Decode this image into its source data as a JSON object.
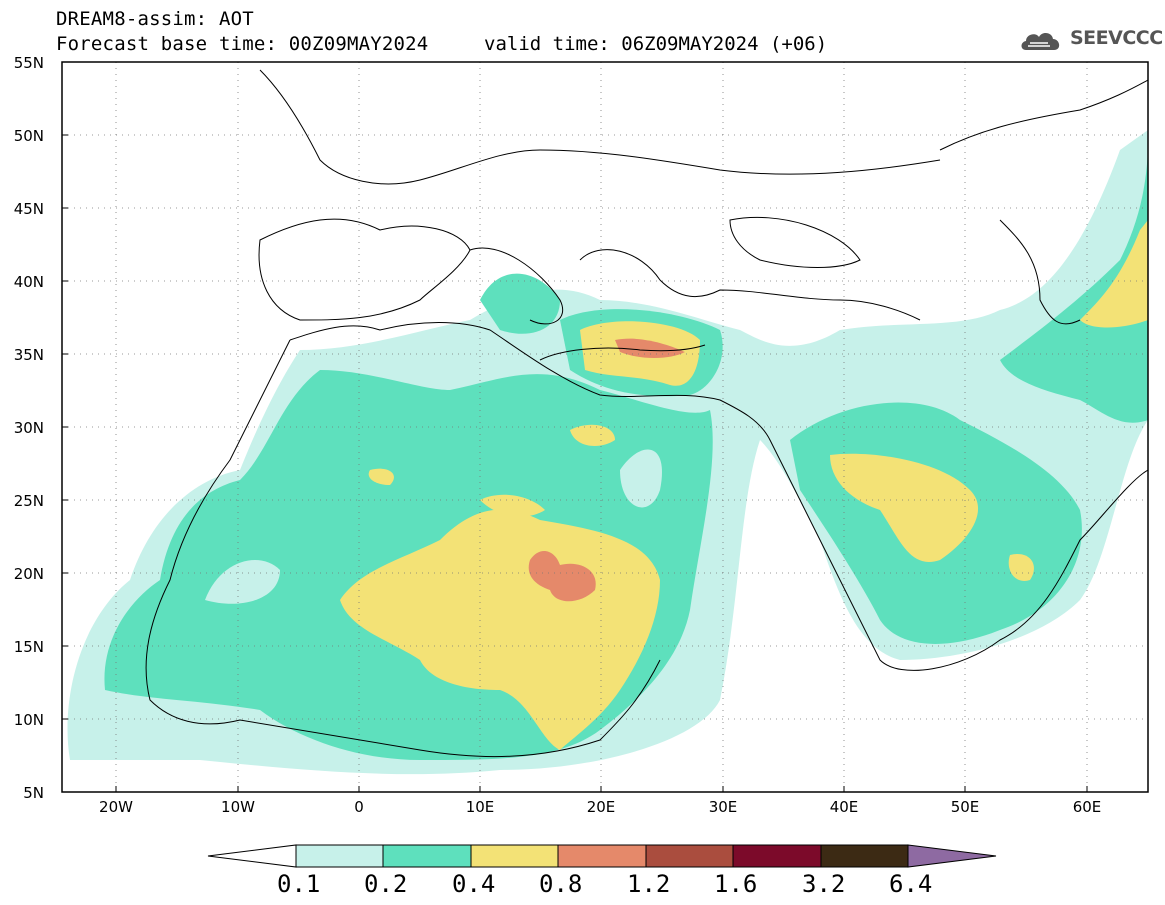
{
  "header": {
    "title": "DREAM8-assim: AOT",
    "base_time": "Forecast base time: 00Z09MAY2024",
    "valid_time": "valid time: 06Z09MAY2024 (+06)",
    "logo_text": "SEEVCCC"
  },
  "map": {
    "lat_labels": [
      "55N",
      "50N",
      "45N",
      "40N",
      "35N",
      "30N",
      "25N",
      "20N",
      "15N",
      "10N",
      "5N"
    ],
    "lon_labels": [
      "20W",
      "10W",
      "0",
      "10E",
      "20E",
      "30E",
      "40E",
      "50E",
      "60E"
    ]
  },
  "colorbar": {
    "levels": [
      "0.1",
      "0.2",
      "0.4",
      "0.8",
      "1.2",
      "1.6",
      "3.2",
      "6.4"
    ],
    "colors": [
      "#c7f1ea",
      "#5ee0bd",
      "#f3e276",
      "#e5896a",
      "#aa4d3e",
      "#7c0a2a",
      "#3c2a14",
      "#8e6aa2"
    ]
  }
}
